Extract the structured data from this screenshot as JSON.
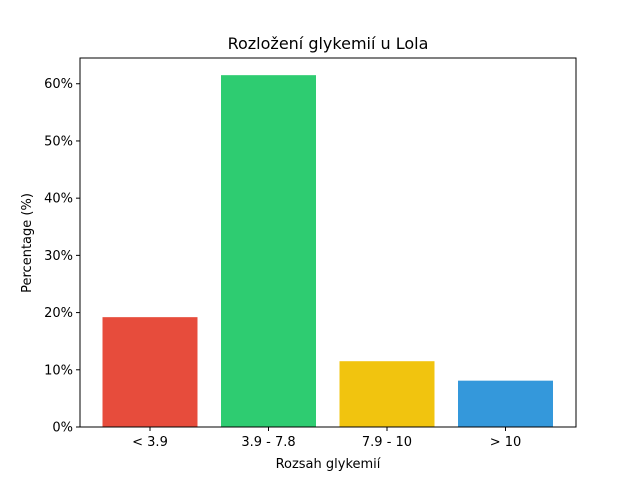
{
  "chart_data": {
    "type": "bar",
    "title": "Rozložení glykemií u  Lola",
    "xlabel": "Rozsah glykemií",
    "ylabel": "Percentage (%)",
    "categories": [
      "< 3.9",
      "3.9 - 7.8",
      "7.9 - 10",
      "> 10"
    ],
    "values": [
      19.2,
      61.5,
      11.5,
      8.1
    ],
    "colors": [
      "#e74c3c",
      "#2ecc71",
      "#f1c40f",
      "#3498db"
    ],
    "ylim": [
      0,
      64.5
    ],
    "yticks": [
      0,
      10,
      20,
      30,
      40,
      50,
      60
    ],
    "ytick_labels": [
      "0%",
      "10%",
      "20%",
      "30%",
      "40%",
      "50%",
      "60%"
    ],
    "grid": false,
    "legend": false
  }
}
